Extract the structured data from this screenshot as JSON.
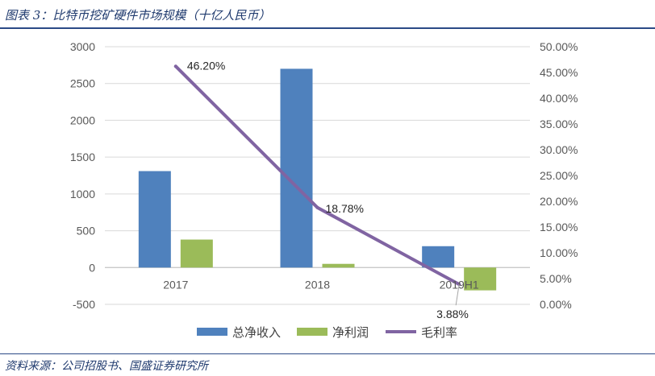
{
  "header": {
    "title": "图表 3：比特币挖矿硬件市场规模（十亿人民币）"
  },
  "footer": {
    "source": "资料来源：公司招股书、国盛证券研究所"
  },
  "colors": {
    "revenue": "#4f81bd",
    "profit": "#9bbb59",
    "margin": "#8064a2",
    "grid": "#d9d9d9",
    "axis_text": "#595959",
    "title": "#1f3a6e"
  },
  "chart_data": {
    "type": "bar",
    "categories": [
      "2017",
      "2018",
      "2019H1"
    ],
    "series": [
      {
        "name": "总净收入",
        "type": "bar",
        "axis": "left",
        "values": [
          1310,
          2700,
          290
        ]
      },
      {
        "name": "净利润",
        "type": "bar",
        "axis": "left",
        "values": [
          380,
          50,
          -310
        ]
      },
      {
        "name": "毛利率",
        "type": "line",
        "axis": "right",
        "values": [
          46.2,
          18.78,
          3.88
        ],
        "labels": [
          "46.20%",
          "18.78%",
          "3.88%"
        ]
      }
    ],
    "ylim": [
      -500,
      3000
    ],
    "yticks": [
      "3000",
      "2500",
      "2000",
      "1500",
      "1000",
      "500",
      "0",
      "-500"
    ],
    "y2lim": [
      0,
      50
    ],
    "y2ticks": [
      "50.00%",
      "45.00%",
      "40.00%",
      "35.00%",
      "30.00%",
      "25.00%",
      "20.00%",
      "15.00%",
      "10.00%",
      "5.00%",
      "0.00%"
    ],
    "grid": true,
    "legend": "bottom"
  }
}
